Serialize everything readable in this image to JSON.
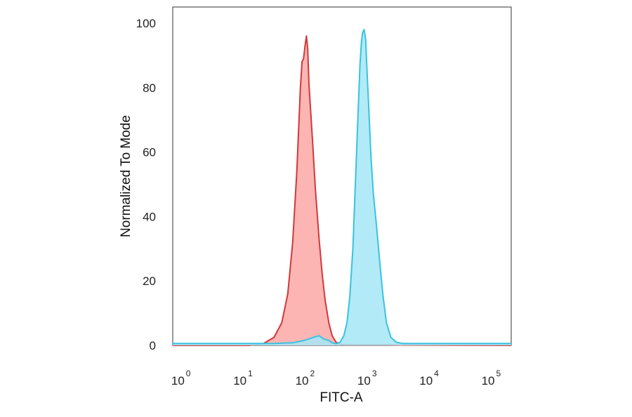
{
  "chart_data": {
    "type": "area",
    "xlabel": "FITC-A",
    "ylabel": "Normalized To Mode",
    "x_scale": "log",
    "xlim": [
      0.7,
      200000
    ],
    "ylim": [
      0,
      105
    ],
    "yticks": [
      {
        "value": 0,
        "label": "0"
      },
      {
        "value": 20,
        "label": "20"
      },
      {
        "value": 40,
        "label": "40"
      },
      {
        "value": 60,
        "label": "60"
      },
      {
        "value": 80,
        "label": "80"
      },
      {
        "value": 100,
        "label": "100"
      }
    ],
    "xticks": [
      {
        "value": 1,
        "base": "10",
        "exp": "0"
      },
      {
        "value": 10,
        "base": "10",
        "exp": "1"
      },
      {
        "value": 100,
        "base": "10",
        "exp": "2"
      },
      {
        "value": 1000,
        "base": "10",
        "exp": "3"
      },
      {
        "value": 10000,
        "base": "10",
        "exp": "4"
      },
      {
        "value": 100000,
        "base": "10",
        "exp": "5"
      }
    ],
    "grid": false,
    "legend": false,
    "series": [
      {
        "line_color": "#d0393b",
        "fill_color": "#fba8a6",
        "points": [
          [
            0.7,
            0
          ],
          [
            12,
            0
          ],
          [
            20,
            0.5
          ],
          [
            30,
            2.5
          ],
          [
            40,
            7
          ],
          [
            50,
            16
          ],
          [
            60,
            32
          ],
          [
            70,
            54
          ],
          [
            80,
            80
          ],
          [
            85,
            88
          ],
          [
            90,
            89
          ],
          [
            95,
            93
          ],
          [
            100,
            96
          ],
          [
            105,
            92
          ],
          [
            110,
            81
          ],
          [
            125,
            64
          ],
          [
            140,
            48
          ],
          [
            160,
            33
          ],
          [
            180,
            22
          ],
          [
            200,
            14
          ],
          [
            230,
            7
          ],
          [
            260,
            3
          ],
          [
            300,
            1
          ],
          [
            350,
            0.3
          ],
          [
            420,
            0.2
          ],
          [
            600,
            0.2
          ],
          [
            1000,
            0.2
          ],
          [
            2000,
            0.2
          ],
          [
            3200,
            0.1
          ],
          [
            200000,
            0
          ]
        ]
      },
      {
        "line_color": "#38c3e0",
        "fill_color": "#a6e6f6",
        "points": [
          [
            0.7,
            0.6
          ],
          [
            30,
            0.6
          ],
          [
            60,
            0.8
          ],
          [
            90,
            1.5
          ],
          [
            110,
            2
          ],
          [
            130,
            2.5
          ],
          [
            160,
            3
          ],
          [
            190,
            2
          ],
          [
            230,
            1.5
          ],
          [
            260,
            0.8
          ],
          [
            300,
            0.5
          ],
          [
            350,
            1
          ],
          [
            400,
            3
          ],
          [
            450,
            7
          ],
          [
            500,
            15
          ],
          [
            560,
            30
          ],
          [
            620,
            52
          ],
          [
            680,
            72
          ],
          [
            730,
            87
          ],
          [
            770,
            94
          ],
          [
            800,
            97
          ],
          [
            850,
            98
          ],
          [
            900,
            95
          ],
          [
            950,
            85
          ],
          [
            1020,
            72
          ],
          [
            1100,
            58
          ],
          [
            1200,
            47
          ],
          [
            1350,
            37
          ],
          [
            1500,
            27
          ],
          [
            1700,
            16
          ],
          [
            1950,
            7
          ],
          [
            2300,
            2.5
          ],
          [
            2800,
            1
          ],
          [
            3500,
            0.6
          ],
          [
            10000,
            0.6
          ],
          [
            200000,
            0.6
          ]
        ]
      }
    ]
  }
}
